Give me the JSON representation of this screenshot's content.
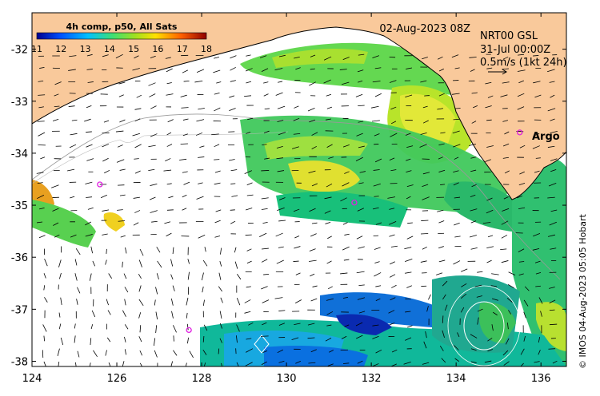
{
  "map": {
    "colorbar": {
      "title": "4h comp, p50, All Sats",
      "tick_labels": [
        "11",
        "12",
        "13",
        "14",
        "15",
        "16",
        "17",
        "18"
      ],
      "min": 11,
      "max": 18
    },
    "valid_time": "02-Aug-2023 08Z",
    "current_product": {
      "line1": "NRT00 GSL",
      "line2": "31-Jul 00:00Z",
      "scale_text": "0.5m/s (1kt 24h)"
    },
    "argo_label": "Argo",
    "credit": "© IMOS 04-Aug-2023 05:05 Hobart",
    "lon_ticks": [
      "124",
      "126",
      "128",
      "130",
      "132",
      "134",
      "136"
    ],
    "lat_ticks": [
      "-32",
      "-33",
      "-34",
      "-35",
      "-36",
      "-37",
      "-38"
    ],
    "lon_range": [
      124,
      136.6
    ],
    "lat_range": [
      -38.1,
      -31.3
    ],
    "argo_floats": [
      {
        "lon": 125.6,
        "lat": -34.6
      },
      {
        "lon": 131.6,
        "lat": -34.95
      },
      {
        "lon": 127.7,
        "lat": -37.4
      },
      {
        "lon": 135.5,
        "lat": -33.6
      }
    ],
    "colors": {
      "land": "#f9c99b",
      "ocean": "#ffffff",
      "vector": "#000000",
      "argo": "#e020e0",
      "contour": "#aaaaaa"
    }
  }
}
